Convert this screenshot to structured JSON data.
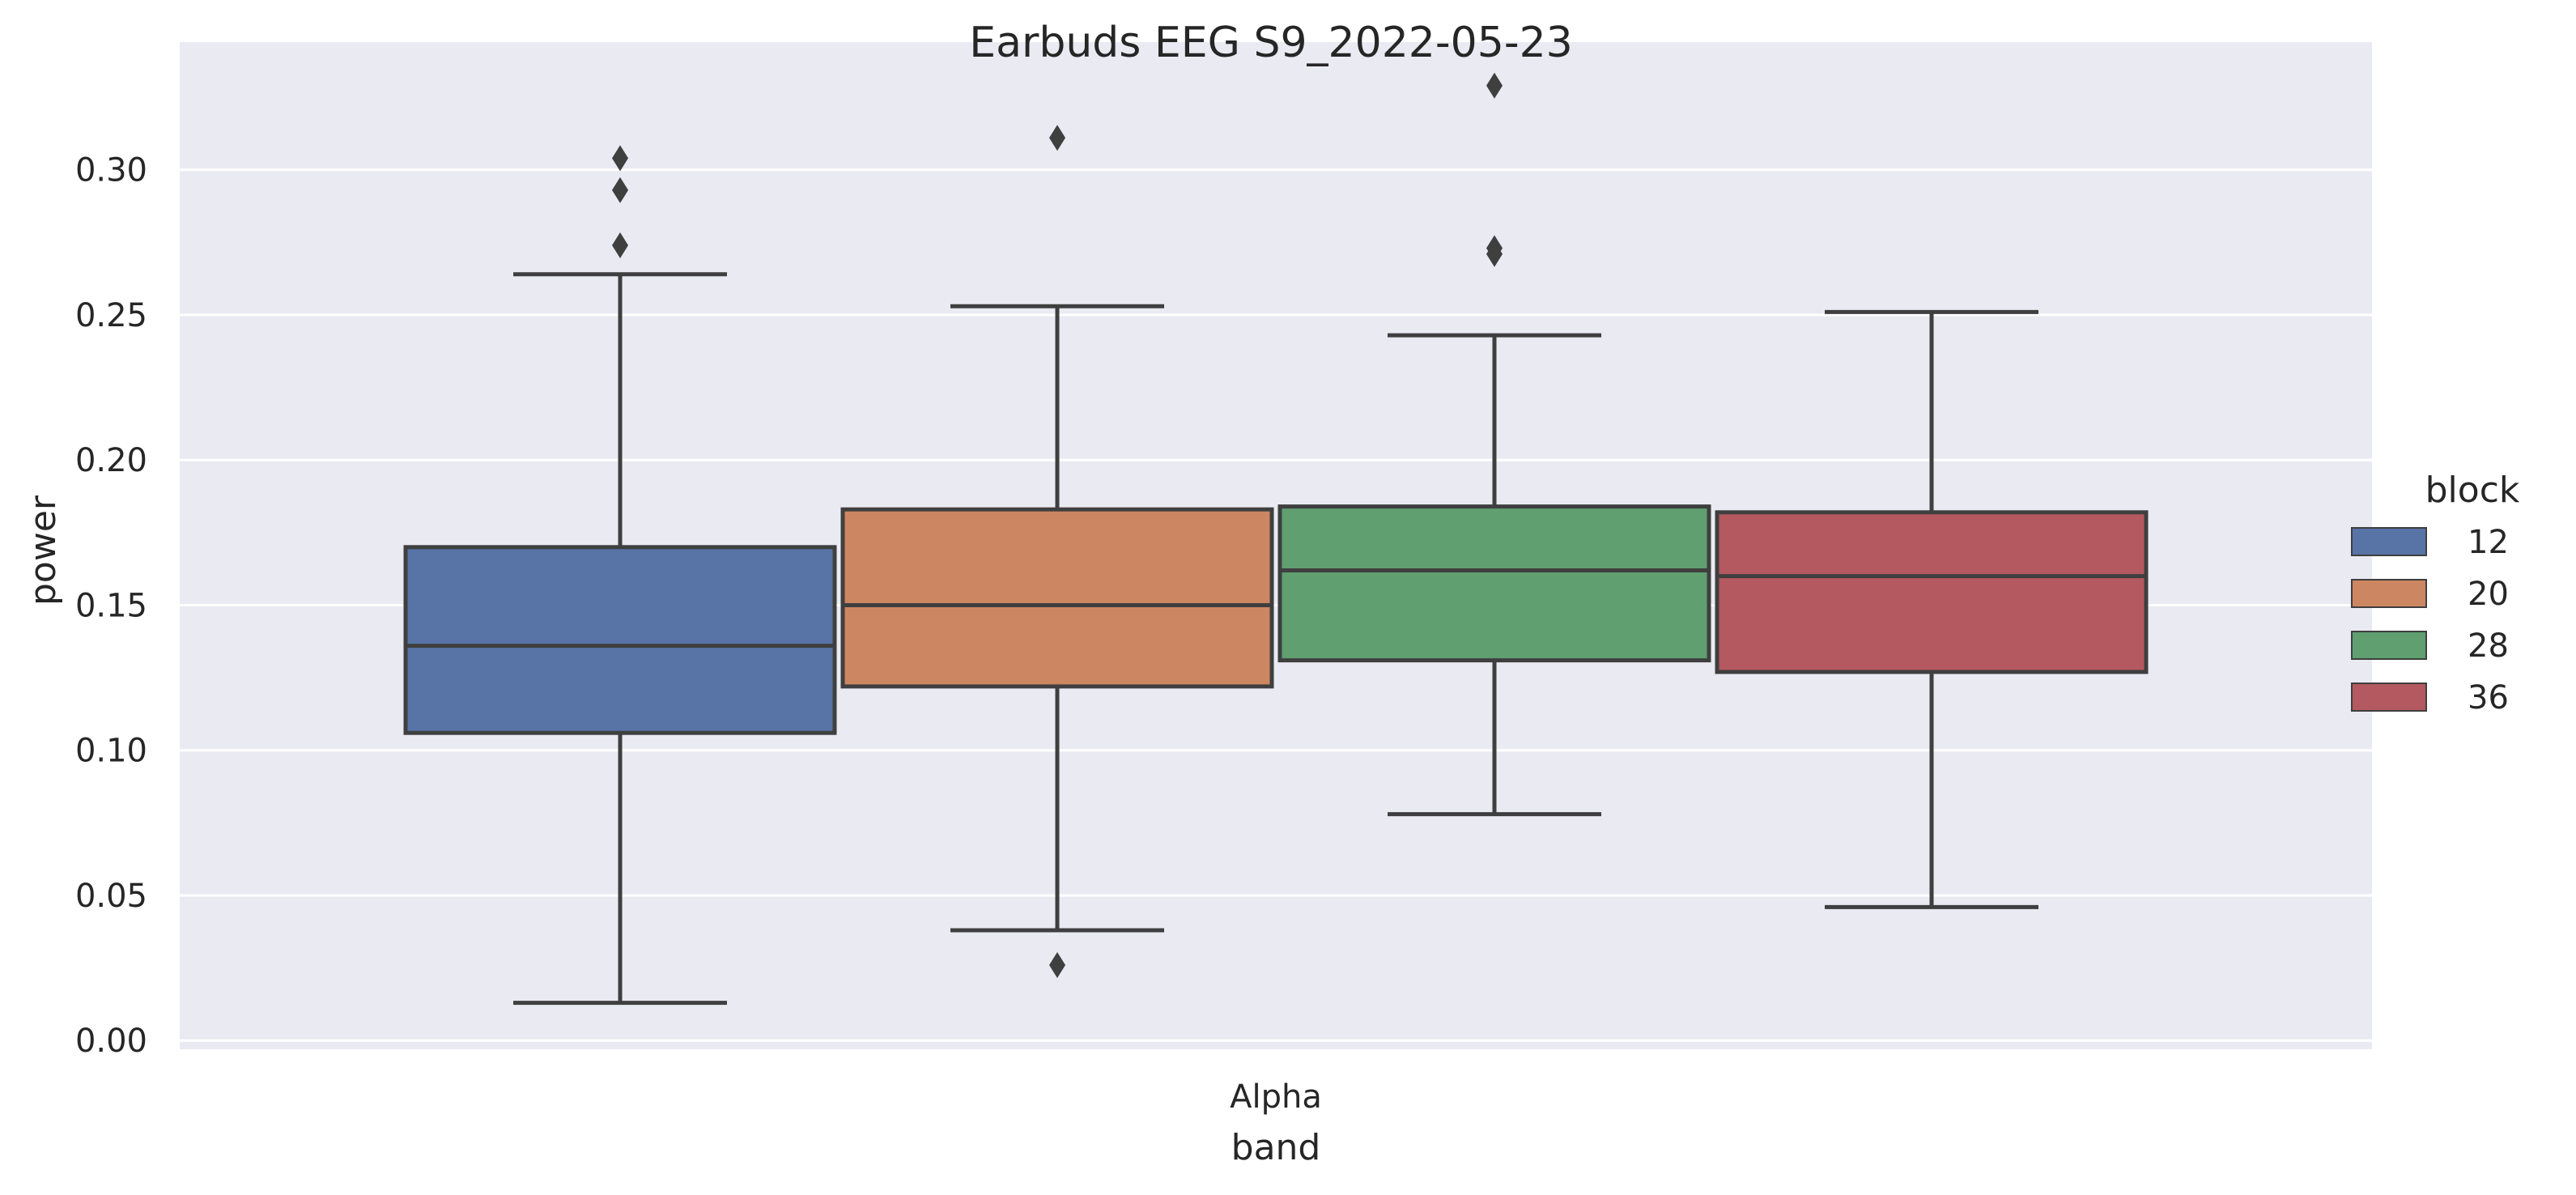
{
  "chart_data": {
    "type": "box",
    "title": "Earbuds EEG S9_2022-05-23",
    "xlabel": "band",
    "ylabel": "power",
    "categories": [
      "Alpha"
    ],
    "ylim": [
      -0.003,
      0.344
    ],
    "yticks": [
      "0.00",
      "0.05",
      "0.10",
      "0.15",
      "0.20",
      "0.25",
      "0.30"
    ],
    "grid": true,
    "legend": {
      "title": "block",
      "placement": "right"
    },
    "series": [
      {
        "name": "12",
        "color": "#5874a6",
        "whisker_low": 0.013,
        "q1": 0.106,
        "median": 0.136,
        "q3": 0.17,
        "whisker_high": 0.264,
        "outliers": [
          0.274,
          0.293,
          0.304
        ]
      },
      {
        "name": "20",
        "color": "#cd8662",
        "whisker_low": 0.038,
        "q1": 0.122,
        "median": 0.15,
        "q3": 0.183,
        "whisker_high": 0.253,
        "outliers": [
          0.026,
          0.311
        ]
      },
      {
        "name": "28",
        "color": "#5f9f70",
        "whisker_low": 0.078,
        "q1": 0.131,
        "median": 0.162,
        "q3": 0.184,
        "whisker_high": 0.243,
        "outliers": [
          0.271,
          0.273,
          0.329
        ]
      },
      {
        "name": "36",
        "color": "#b4595f",
        "whisker_low": 0.046,
        "q1": 0.127,
        "median": 0.16,
        "q3": 0.182,
        "whisker_high": 0.251,
        "outliers": []
      }
    ],
    "colors": {
      "plot_background": "#eaeaf2",
      "grid": "#ffffff",
      "box_edge": "#3f3f3f"
    }
  }
}
